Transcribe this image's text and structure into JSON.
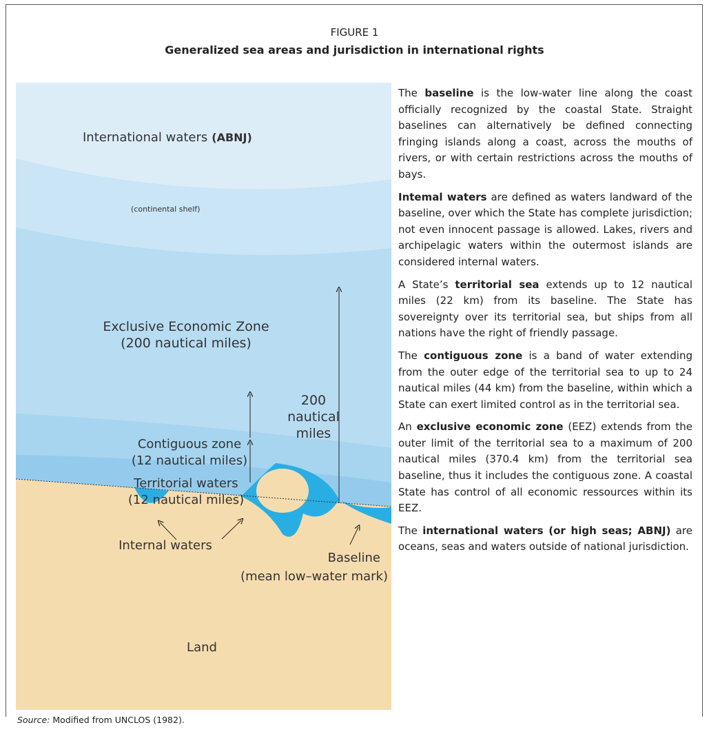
{
  "figure": {
    "label": "FIGURE 1",
    "title": "Generalized sea areas and jurisdiction in international rights"
  },
  "diagram": {
    "labels": [
      "International waters",
      "(ABNJ)",
      "(continental shelf)",
      "Exclusive Economic Zone",
      "(200 nautical miles)",
      "200",
      "nautical",
      "miles",
      "Contiguous zone",
      "(12 nautical miles)",
      "Territorial waters",
      "(12 nautical miles)",
      "Internal waters",
      "Baseline",
      "(mean low–water mark)",
      "Land"
    ]
  },
  "paragraphs": [
    [
      {
        "text": "The "
      },
      {
        "text": "baseline",
        "bold": true
      },
      {
        "text": " is the low-water line along the coast officially recognized by the coastal State. Straight baselines can alternatively be defined connecting fringing islands along a coast, across the mouths of rivers, or with certain restrictions across the mouths of bays."
      }
    ],
    [
      {
        "text": "Intemal waters",
        "bold": true
      },
      {
        "text": " are defined as waters landward of the baseline, over which the State has complete jurisdiction; not even innocent passage is allowed. Lakes, rivers and archipelagic waters within the outermost islands are considered internal waters."
      }
    ],
    [
      {
        "text": "A State’s "
      },
      {
        "text": "territorial sea",
        "bold": true
      },
      {
        "text": " extends up to 12 nautical miles (22 km) from its baseline. The State has sovereignty over its territorial sea, but ships from all nations have the right of friendly passage."
      }
    ],
    [
      {
        "text": "The "
      },
      {
        "text": "contiguous zone",
        "bold": true
      },
      {
        "text": " is a band of water extending from the outer edge of the territorial sea to up to 24 nautical miles (44 km) from the baseline, within which a State can exert limited control as in the territorial sea."
      }
    ],
    [
      {
        "text": "An "
      },
      {
        "text": "exclusive economic zone",
        "bold": true
      },
      {
        "text": " (EEZ) extends from the outer limit of the territorial sea to a maximum of 200 nautical miles (370.4 km) from the territorial sea baseline, thus it includes the contiguous zone. A coastal State has control of all economic ressources within its EEZ."
      }
    ],
    [
      {
        "text": "The "
      },
      {
        "text": "international waters (or high seas; ABNJ)",
        "bold": true
      },
      {
        "text": " are oceans, seas and waters outside of national jurisdiction."
      }
    ]
  ],
  "source": {
    "label": "Source:",
    "text": " Modified from UNCLOS (1982)."
  }
}
